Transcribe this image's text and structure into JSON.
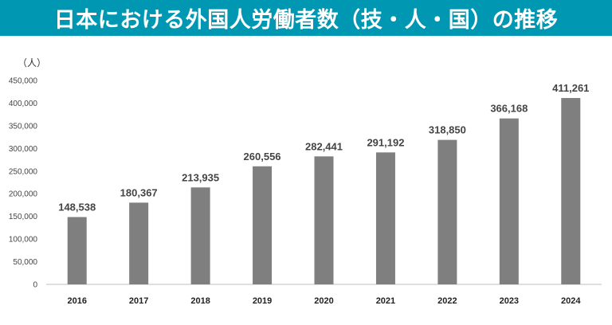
{
  "chart_data": {
    "type": "bar",
    "title": "日本における外国人労働者数（技・人・国）の推移",
    "ylabel": "（人）",
    "categories": [
      "2016",
      "2017",
      "2018",
      "2019",
      "2020",
      "2021",
      "2022",
      "2023",
      "2024"
    ],
    "values": [
      148538,
      180367,
      213935,
      260556,
      282441,
      291192,
      318850,
      366168,
      411261
    ],
    "data_labels": [
      "148,538",
      "180,367",
      "213,935",
      "260,556",
      "282,441",
      "291,192",
      "318,850",
      "366,168",
      "411,261"
    ],
    "ylim": [
      0,
      450000
    ],
    "yticks": [
      "0",
      "50,000",
      "100,000",
      "150,000",
      "200,000",
      "250,000",
      "300,000",
      "350,000",
      "400,000",
      "450,000"
    ],
    "grid": false,
    "colors": {
      "bar": "#7f7f7f",
      "title_bg": "#0097b2"
    }
  }
}
